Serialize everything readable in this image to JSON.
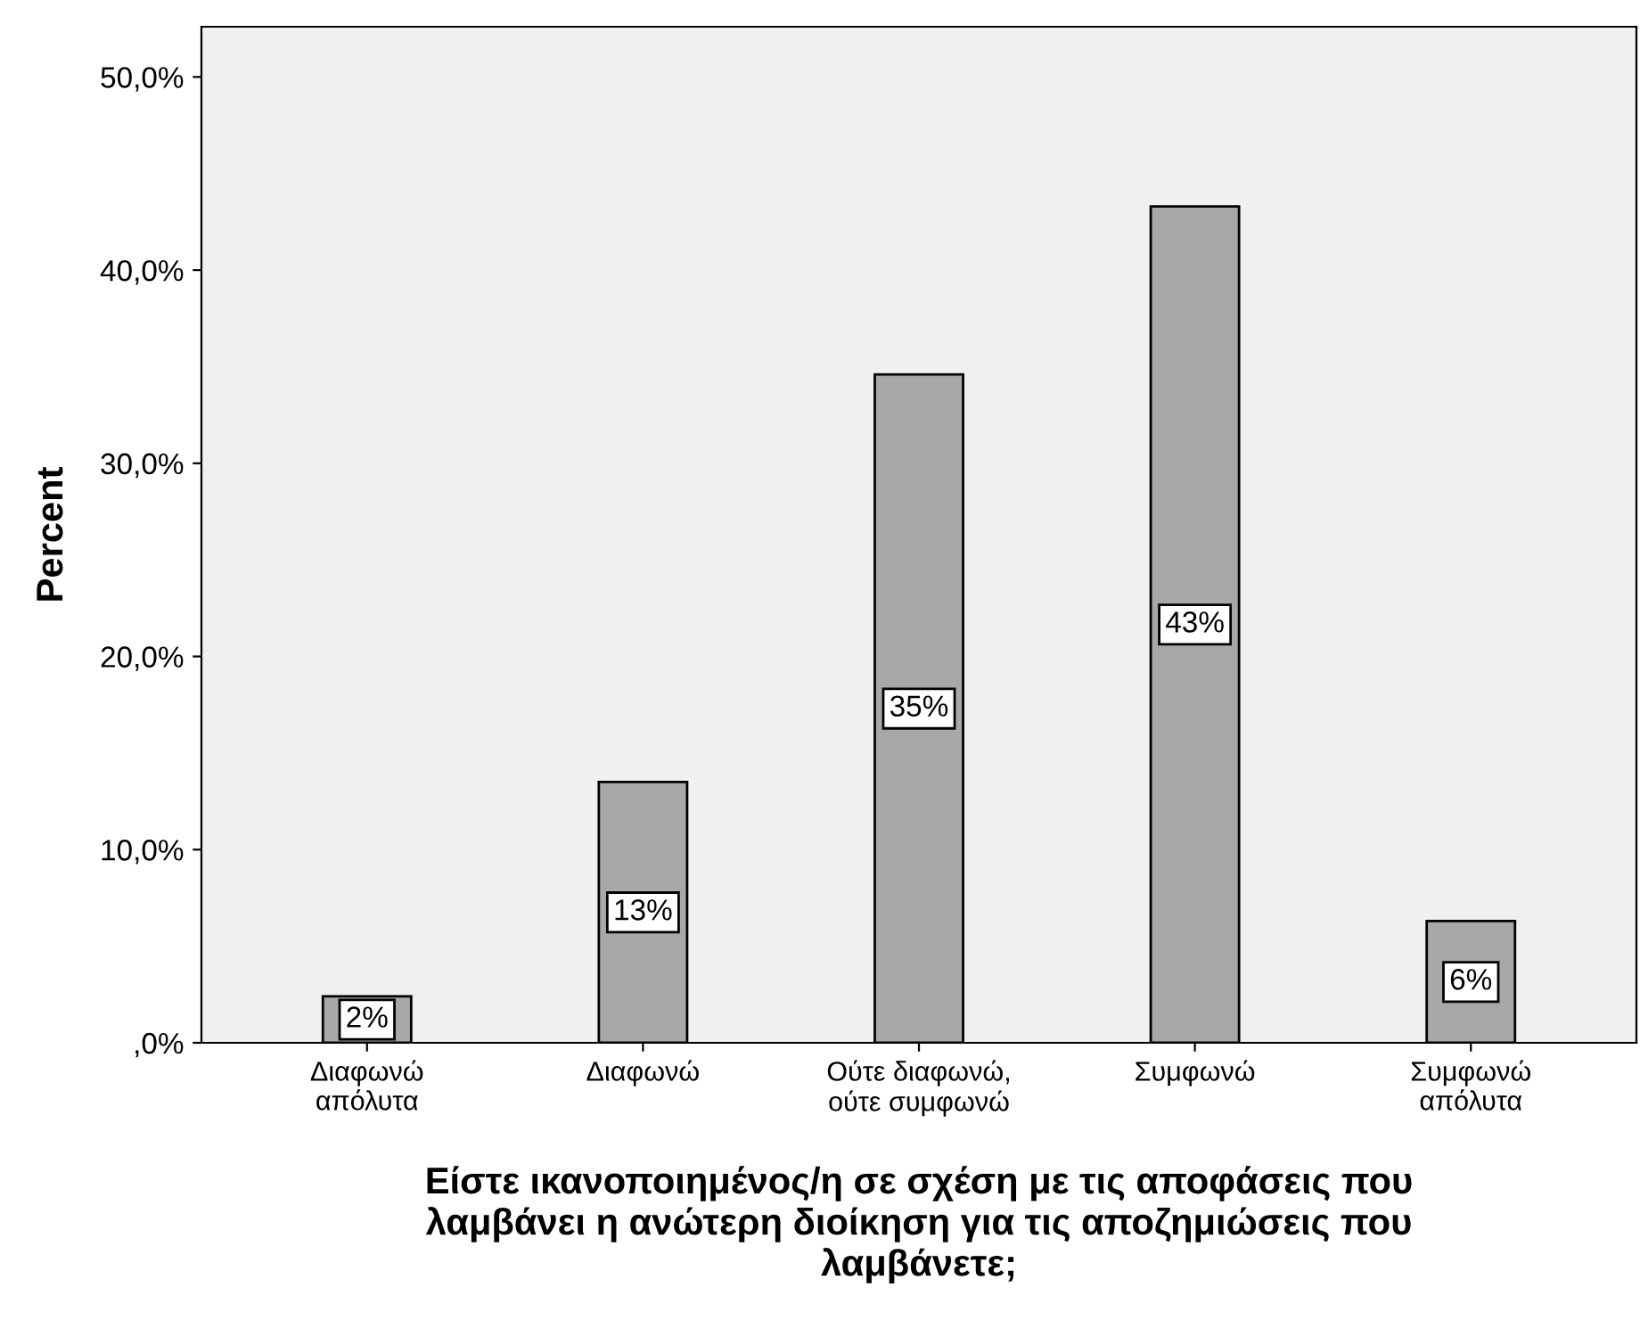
{
  "chart_data": {
    "type": "bar",
    "xlabel": "Είστε ικανοποιημένος/η σε σχέση με τις αποφάσεις που\nλαμβάνει η ανώτερη διοίκηση για τις αποζημιώσεις που\nλαμβάνετε;",
    "ylabel": "Percent",
    "categories": [
      "Διαφωνώ\nαπόλυτα",
      "Διαφωνώ",
      "Ούτε διαφωνώ,\nούτε συμφωνώ",
      "Συμφωνώ",
      "Συμφωνώ\nαπόλυτα"
    ],
    "values": [
      2.4,
      13.5,
      34.6,
      43.3,
      6.3
    ],
    "value_labels": [
      "2%",
      "13%",
      "35%",
      "43%",
      "6%"
    ],
    "color": "#a8a8a8",
    "ylim": [
      0,
      52.6
    ],
    "yticks": [
      {
        "value": 0,
        "label": ",0%"
      },
      {
        "value": 10,
        "label": "10,0%"
      },
      {
        "value": 20,
        "label": "20,0%"
      },
      {
        "value": 30,
        "label": "30,0%"
      },
      {
        "value": 40,
        "label": "40,0%"
      },
      {
        "value": 50,
        "label": "50,0%"
      }
    ],
    "grid": false
  }
}
